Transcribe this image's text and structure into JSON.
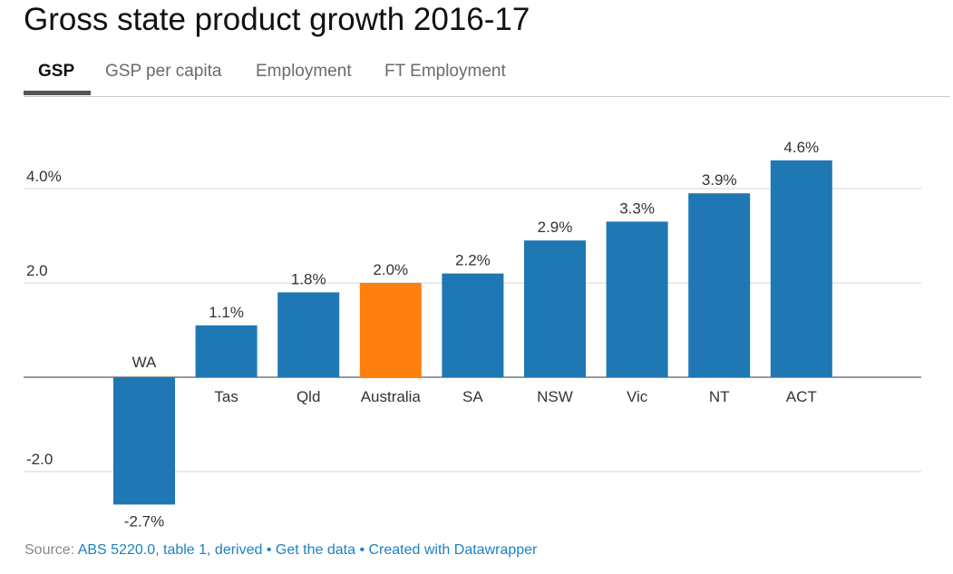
{
  "title": "Gross state product growth 2016-17",
  "tabs": [
    {
      "label": "GSP",
      "active": true
    },
    {
      "label": "GSP per capita",
      "active": false
    },
    {
      "label": "Employment",
      "active": false
    },
    {
      "label": "FT Employment",
      "active": false
    }
  ],
  "colors": {
    "bar": "#1f77b4",
    "highlight": "#ff7f0e",
    "link": "#1d81c4"
  },
  "chart_data": {
    "type": "bar",
    "title": "Gross state product growth 2016-17",
    "xlabel": "",
    "ylabel": "",
    "categories": [
      "WA",
      "Tas",
      "Qld",
      "Australia",
      "SA",
      "NSW",
      "Vic",
      "NT",
      "ACT"
    ],
    "values": [
      -2.7,
      1.1,
      1.8,
      2.0,
      2.2,
      2.9,
      3.3,
      3.9,
      4.6
    ],
    "value_labels": [
      "-2.7%",
      "1.1%",
      "1.8%",
      "2.0%",
      "2.2%",
      "2.9%",
      "3.3%",
      "3.9%",
      "4.6%"
    ],
    "highlight": "Australia",
    "ylim": [
      -3,
      5
    ],
    "yticks": [
      4,
      2,
      0,
      -2
    ],
    "ytick_labels": [
      "4.0%",
      "2.0",
      "",
      "-2.0"
    ],
    "grid": true
  },
  "footer": {
    "source_label": "Source:",
    "source_link": "ABS 5220.0, table 1, derived",
    "separator": "•",
    "get_data": "Get the data",
    "created_with": "Created with Datawrapper"
  }
}
